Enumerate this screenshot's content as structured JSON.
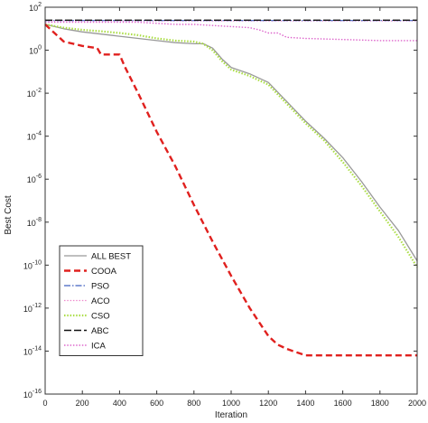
{
  "chart_data": {
    "type": "line",
    "title": "",
    "xlabel": "Iteration",
    "ylabel": "Best Cost",
    "xlim": [
      0,
      2000
    ],
    "ylim_log10": [
      -16,
      2
    ],
    "yscale": "log",
    "grid": false,
    "legend_position": "bottom-left",
    "x_ticks": [
      "0",
      "200",
      "400",
      "600",
      "800",
      "1000",
      "1200",
      "1400",
      "1600",
      "1800",
      "2000"
    ],
    "y_ticks": [
      {
        "base": "10",
        "exp": "2",
        "log10": 2
      },
      {
        "base": "10",
        "exp": "0",
        "log10": 0
      },
      {
        "base": "10",
        "exp": "-2",
        "log10": -2
      },
      {
        "base": "10",
        "exp": "-4",
        "log10": -4
      },
      {
        "base": "10",
        "exp": "-6",
        "log10": -6
      },
      {
        "base": "10",
        "exp": "-8",
        "log10": -8
      },
      {
        "base": "10",
        "exp": "-10",
        "log10": -10
      },
      {
        "base": "10",
        "exp": "-12",
        "log10": -12
      },
      {
        "base": "10",
        "exp": "-14",
        "log10": -14
      },
      {
        "base": "10",
        "exp": "-16",
        "log10": -16
      }
    ],
    "series": [
      {
        "name": "ALL BEST",
        "color": "#999999",
        "dash": "solid",
        "x": [
          0,
          100,
          200,
          300,
          400,
          500,
          600,
          700,
          800,
          850,
          900,
          950,
          1000,
          1100,
          1200,
          1300,
          1400,
          1500,
          1600,
          1700,
          1800,
          1900,
          2000
        ],
        "log10_y": [
          1.2,
          1.0,
          0.85,
          0.75,
          0.65,
          0.55,
          0.45,
          0.35,
          0.3,
          0.3,
          0.1,
          -0.4,
          -0.8,
          -1.1,
          -1.5,
          -2.4,
          -3.3,
          -4.1,
          -5.0,
          -6.1,
          -7.3,
          -8.4,
          -9.8
        ]
      },
      {
        "name": "COOA",
        "color": "#e0201e",
        "dash": "dashed",
        "x": [
          0,
          50,
          100,
          200,
          280,
          300,
          400,
          430,
          500,
          600,
          700,
          800,
          900,
          1000,
          1100,
          1200,
          1250,
          1300,
          1400,
          1500,
          1700,
          2000
        ],
        "log10_y": [
          1.2,
          0.8,
          0.4,
          0.2,
          0.1,
          -0.2,
          -0.2,
          -0.8,
          -2.0,
          -3.8,
          -5.4,
          -7.2,
          -8.9,
          -10.5,
          -12.0,
          -13.3,
          -13.7,
          -13.9,
          -14.2,
          -14.2,
          -14.2,
          -14.2
        ]
      },
      {
        "name": "PSO",
        "color": "#4060c0",
        "dash": "dashdot",
        "x": [
          0,
          2000
        ],
        "log10_y": [
          1.38,
          1.38
        ]
      },
      {
        "name": "ACO",
        "color": "#ee88cc",
        "dash": "dotted",
        "x": [
          0,
          2000
        ],
        "log10_y": [
          1.36,
          1.36
        ]
      },
      {
        "name": "CSO",
        "color": "#aadd44",
        "dash": "dotted",
        "x": [
          0,
          100,
          200,
          300,
          400,
          500,
          600,
          700,
          800,
          850,
          900,
          950,
          1000,
          1100,
          1200,
          1300,
          1400,
          1500,
          1600,
          1700,
          1800,
          1900,
          2000
        ],
        "log10_y": [
          1.2,
          1.05,
          0.95,
          0.88,
          0.8,
          0.7,
          0.55,
          0.45,
          0.4,
          0.3,
          0.0,
          -0.5,
          -0.9,
          -1.2,
          -1.6,
          -2.5,
          -3.4,
          -4.2,
          -5.2,
          -6.3,
          -7.5,
          -8.7,
          -10.1
        ]
      },
      {
        "name": "ABC",
        "color": "#111111",
        "dash": "longdash",
        "x": [
          0,
          2000
        ],
        "log10_y": [
          1.4,
          1.4
        ]
      },
      {
        "name": "ICA",
        "color": "#dd66cc",
        "dash": "dotted",
        "x": [
          0,
          500,
          600,
          700,
          800,
          900,
          1000,
          1100,
          1150,
          1200,
          1250,
          1300,
          1400,
          1600,
          1800,
          2000
        ],
        "log10_y": [
          1.3,
          1.3,
          1.25,
          1.2,
          1.2,
          1.15,
          1.1,
          1.05,
          0.95,
          0.8,
          0.8,
          0.6,
          0.55,
          0.5,
          0.45,
          0.45
        ]
      }
    ]
  }
}
